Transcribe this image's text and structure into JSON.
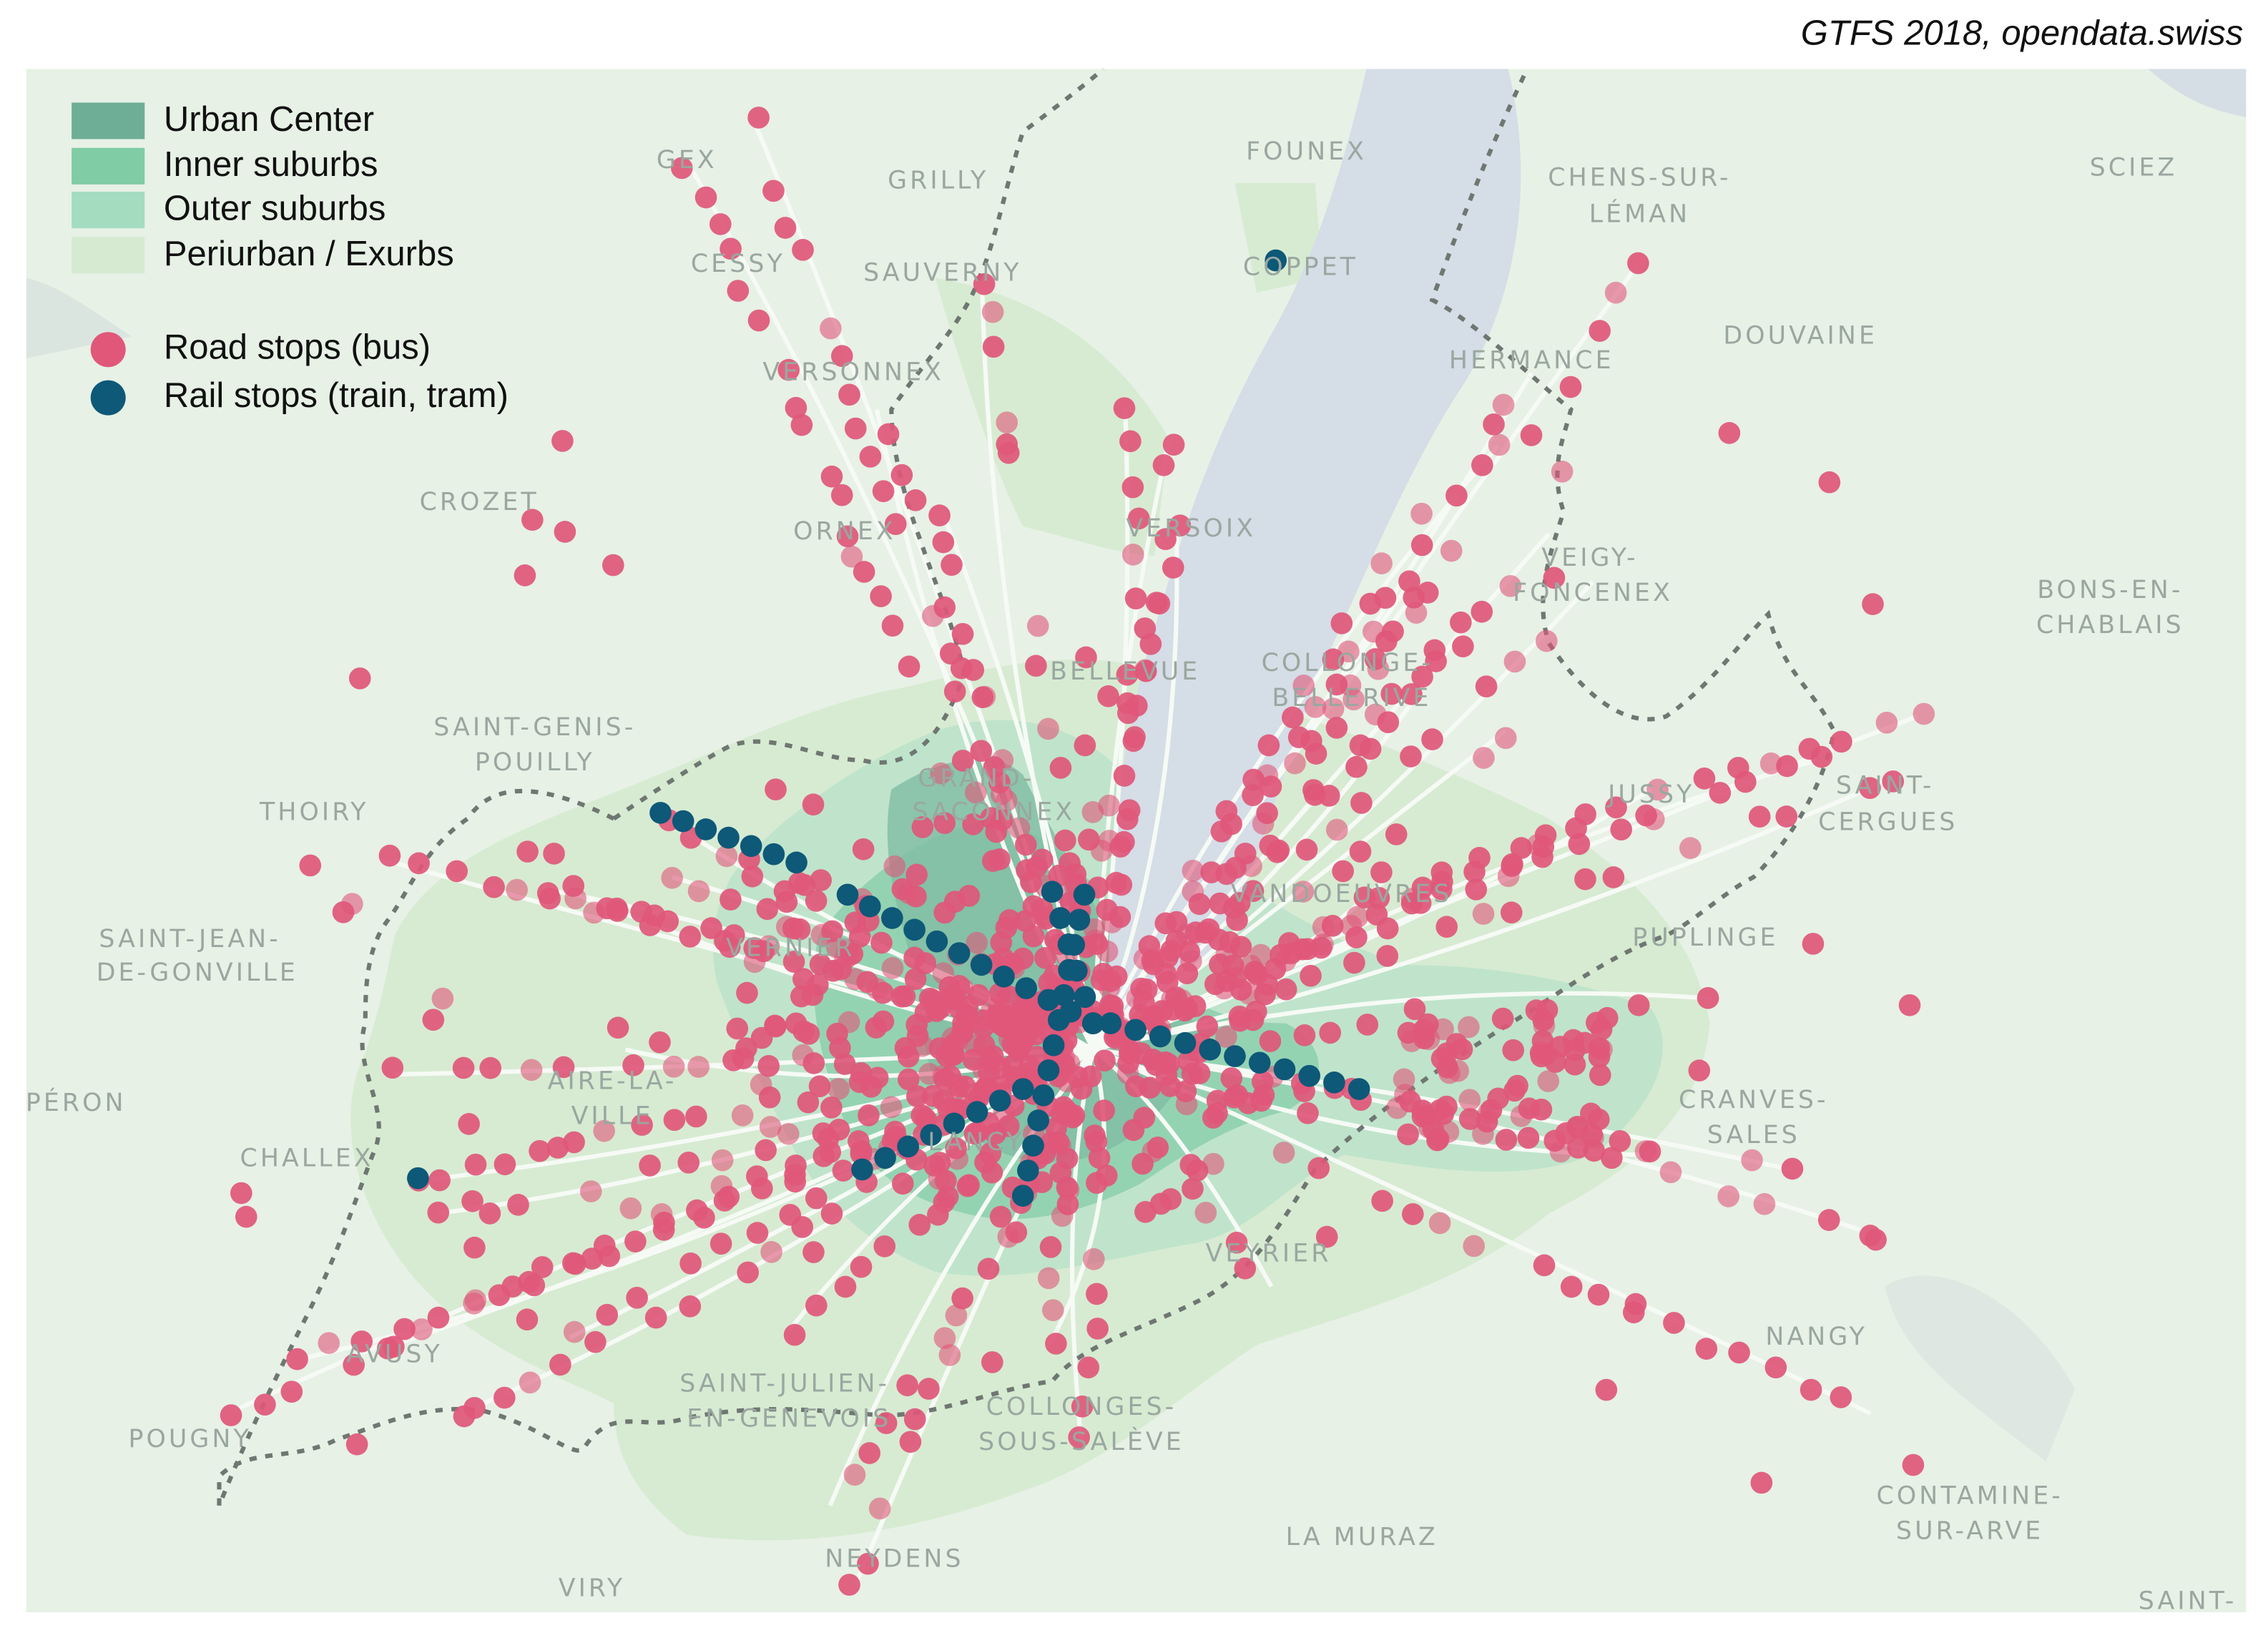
{
  "source": "GTFS 2018, opendata.swiss",
  "legend": {
    "zones": [
      "Urban Center",
      "Inner suburbs",
      "Outer suburbs",
      "Periurban / Exurbs"
    ],
    "stops": [
      "Road stops (bus)",
      "Rail stops (train, tram)"
    ]
  },
  "places": [
    "GEX",
    "GRILLY",
    "FOUNEX",
    "CHENS-SUR-",
    "LÉMAN",
    "SCIEZ",
    "CESSY",
    "SAUVERNY",
    "COPPET",
    "DOUVAINE",
    "VERSONNEX",
    "HERMANCE",
    "CROZET",
    "ORNEX",
    "VERSOIX",
    "VEIGY-",
    "FONCENEX",
    "BONS-EN-",
    "CHABLAIS",
    "BELLEVUE",
    "COLLONGE-",
    "BELLERIVE",
    "SAINT-GENIS-",
    "POUILLY",
    "THOIRY",
    "JUSSY",
    "SAINT-",
    "CERGUES",
    "GRAND-",
    "SACONNEX",
    "VANDOEUVRES",
    "SAINT-JEAN-",
    "DE-GONVILLE",
    "VERNIER",
    "PUPLINGE",
    "AIRE-LA-",
    "VILLE",
    "CRANVES-",
    "SALES",
    "PÉRON",
    "CHALLEX",
    "LANCY",
    "VEYRIER",
    "NANGY",
    "AVUSY",
    "SAINT-JULIEN-",
    "EN-GENEVOIS",
    "COLLONGES-",
    "SOUS-SALÈVE",
    "POUGNY",
    "CONTAMINE-",
    "SUR-ARVE",
    "LA MURAZ",
    "NEYDENS",
    "VIRY",
    "SAINT-"
  ]
}
